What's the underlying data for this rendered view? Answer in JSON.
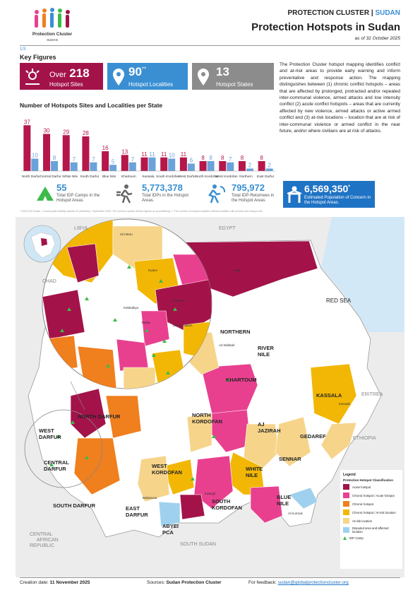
{
  "logo": {
    "name": "Protection Cluster",
    "country": "SUDAN"
  },
  "header": {
    "org": "PROTECTION CLUSTER",
    "separator": "|",
    "country": "SUDAN",
    "title": "Protection Hotspots in Sudan",
    "date": "as of 31 October 2025"
  },
  "page": "1/3",
  "key_figures": {
    "title": "Key Figures",
    "cards": [
      {
        "prefix": "Over",
        "value": "218",
        "label": "Hotspot Sites"
      },
      {
        "value": "90",
        "note": "**",
        "label": "Hotspot Localities"
      },
      {
        "value": "13",
        "label": "Hotspot States"
      }
    ]
  },
  "chart_data": {
    "type": "bar",
    "title": "Number of Hotspots Sites and Localities per State",
    "categories": [
      "North Darfur",
      "Central Darfur",
      "White Nile",
      "South Darfur",
      "Blue Nile",
      "Khartoum",
      "Kassala",
      "South Kordofan",
      "West Darfur",
      "North Kordofan",
      "West Kordofan",
      "Northern",
      "East Darfur"
    ],
    "series": [
      {
        "color": "#b5174b",
        "values": [
          37,
          30,
          29,
          28,
          16,
          13,
          11,
          11,
          11,
          8,
          8,
          8,
          8
        ]
      },
      {
        "color": "#6aa3d9",
        "values": [
          10,
          8,
          7,
          7,
          5,
          7,
          11,
          10,
          6,
          8,
          7,
          2,
          2
        ]
      }
    ],
    "ylim": [
      0,
      40
    ]
  },
  "stats": [
    {
      "value": "55",
      "label": "Total IDP Camps in the Hotspot Areas"
    },
    {
      "value": "5,773,378",
      "label": "Total IDPs in the Hotspot Areas."
    },
    {
      "value": "795,972",
      "label": "Total IDP-Returnees in the Hotspot Areas"
    },
    {
      "value": "6,569,350",
      "note": "*",
      "label": "Estimated Population of Concern in the Hotspot Areas."
    }
  ],
  "description": "The Protection Cluster hotspot mapping identifies conflict and at-risk areas to provide early warning and inform preventative and response action. The mapping distinguishes between (1) chronic conflict hotspots – areas that are affected by prolonged, protracted and/or repeated inter-communal violence, armed attacks and low intensity conflict (2) acute conflict hotspots – areas that are currently affected by new violence, armed attacks or active armed conflict and (3) at-risk locations – location that are at risk of inter-communal violence or armed conflict in the near future, and/or where civilians are at risk of attacks.",
  "footnote": "* IOM DTM Sudan - Countrywide Mobility Update 22 (Baseline), September 2025. The Geneva update reflects figures as at publishing. ** The number of hotspot localities reflects localities with at least one hotspot site.",
  "map": {
    "countries": [
      "LIBYA",
      "EGYPT",
      "CHAD",
      "ERITREA",
      "ETHIOPIA",
      "CENTRAL AFRICAN REPUBLIC",
      "SOUTH SUDAN"
    ],
    "sea": "RED SEA",
    "states": [
      "NORTHERN",
      "RIVER NILE",
      "KHARTOUM",
      "KASSALA",
      "NORTH DARFUR",
      "NORTH KORDOFAN",
      "AJ JAZIRAH",
      "GEDAREF",
      "WEST DARFUR",
      "CENTRAL DARFUR",
      "WEST KORDOFAN",
      "SOUTH KORDOFAN",
      "WHITE NILE",
      "SENNAR",
      "SOUTH DARFUR",
      "EAST DARFUR",
      "BLUE NILE",
      "ABYEI PCA"
    ],
    "localities": [
      "Halfa",
      "Um Baru",
      "Kutum",
      "Al Fasher",
      "Kebkabiya",
      "Tawila",
      "Dar As Salam",
      "Ad Dabbah",
      "Kassala",
      "Al Kurmuk",
      "Babanusa",
      "Kadugli"
    ]
  },
  "legend": {
    "title": "Legend",
    "subtitle": "Protection Hotspot Classification",
    "items": [
      {
        "label": "Acute hotspot",
        "color": "#a3134a"
      },
      {
        "label": "Chronic hotspot / Acute hotspot",
        "color": "#e8408f"
      },
      {
        "label": "Chronic hotspot",
        "color": "#f07f1e"
      },
      {
        "label": "Chronic hotspot / At-risk location",
        "color": "#f2b705"
      },
      {
        "label": "At-risk location",
        "color": "#f6d48a"
      },
      {
        "label": "Disputed area and affected location",
        "color": "#9fd1ee"
      },
      {
        "label": "IDP Camp",
        "color": "#3dbb4a"
      }
    ]
  },
  "footer": {
    "created_label": "Creation date:",
    "created": "11 November 2025",
    "sources_label": "Sources:",
    "sources": "Sudan Protection Cluster",
    "feedback_label": "For feedback:",
    "feedback": "sudan@globalprotectioncluster.org"
  }
}
